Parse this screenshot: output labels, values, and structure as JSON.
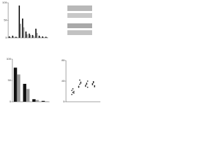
{
  "chart_data": [
    {
      "type": "bar",
      "categories": [
        null,
        null,
        null,
        null,
        null,
        null,
        null,
        null,
        null,
        null,
        null,
        null
      ],
      "series": [
        {
          "color": "#111111",
          "values": [
            4,
            6,
            3,
            92,
            55,
            18,
            12,
            8,
            26,
            6,
            4,
            3
          ]
        },
        {
          "color": "#9a9a9a",
          "values": [
            2,
            3,
            2,
            40,
            30,
            10,
            8,
            5,
            14,
            3,
            2,
            2
          ]
        }
      ],
      "ylim": [
        0,
        100
      ],
      "yticks": [
        0,
        50,
        100
      ]
    },
    {
      "type": "bar",
      "categories": [
        null,
        null,
        null,
        null
      ],
      "series": [
        {
          "color": "#111111",
          "values": [
            80,
            42,
            6,
            2
          ]
        },
        {
          "color": "#9a9a9a",
          "values": [
            64,
            30,
            4,
            1
          ]
        }
      ],
      "ylim": [
        0,
        100
      ],
      "yticks": [
        0,
        50,
        100
      ]
    },
    {
      "type": "scatter",
      "series": [
        {
          "color": "#222222",
          "x": [
            1,
            1,
            1,
            1,
            1,
            1,
            2,
            2,
            2,
            2,
            2,
            2,
            3,
            3,
            3,
            3,
            3,
            3,
            4,
            4,
            4,
            4,
            4,
            4
          ],
          "values": [
            14,
            18,
            20,
            22,
            25,
            17,
            30,
            34,
            38,
            28,
            42,
            36,
            32,
            36,
            40,
            30,
            34,
            28,
            33,
            37,
            29,
            35,
            39,
            31
          ]
        }
      ],
      "xlim": [
        0,
        5
      ],
      "ylim": [
        0,
        80
      ],
      "yticks": [
        0,
        40,
        80
      ]
    }
  ]
}
